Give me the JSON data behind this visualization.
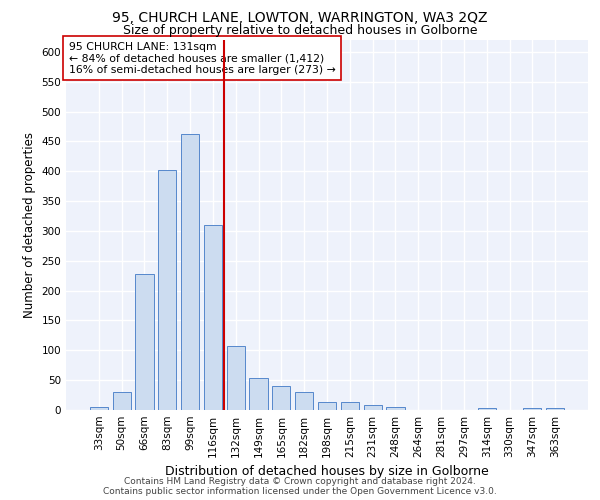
{
  "title1": "95, CHURCH LANE, LOWTON, WARRINGTON, WA3 2QZ",
  "title2": "Size of property relative to detached houses in Golborne",
  "xlabel": "Distribution of detached houses by size in Golborne",
  "ylabel": "Number of detached properties",
  "bar_labels": [
    "33sqm",
    "50sqm",
    "66sqm",
    "83sqm",
    "99sqm",
    "116sqm",
    "132sqm",
    "149sqm",
    "165sqm",
    "182sqm",
    "198sqm",
    "215sqm",
    "231sqm",
    "248sqm",
    "264sqm",
    "281sqm",
    "297sqm",
    "314sqm",
    "330sqm",
    "347sqm",
    "363sqm"
  ],
  "bar_values": [
    5,
    30,
    228,
    403,
    462,
    310,
    108,
    53,
    40,
    30,
    14,
    14,
    8,
    5,
    0,
    0,
    0,
    4,
    0,
    4,
    4
  ],
  "bar_color": "#ccdcf0",
  "bar_edge_color": "#5588cc",
  "vline_color": "#cc0000",
  "annotation_text": "95 CHURCH LANE: 131sqm\n← 84% of detached houses are smaller (1,412)\n16% of semi-detached houses are larger (273) →",
  "annotation_box_color": "white",
  "annotation_box_edge": "#cc0000",
  "ylim": [
    0,
    620
  ],
  "yticks": [
    0,
    50,
    100,
    150,
    200,
    250,
    300,
    350,
    400,
    450,
    500,
    550,
    600
  ],
  "footer1": "Contains HM Land Registry data © Crown copyright and database right 2024.",
  "footer2": "Contains public sector information licensed under the Open Government Licence v3.0.",
  "bg_color": "#eef2fb",
  "grid_color": "#ffffff",
  "title1_fontsize": 10,
  "title2_fontsize": 9,
  "xlabel_fontsize": 9,
  "ylabel_fontsize": 8.5,
  "tick_fontsize": 7.5,
  "footer_fontsize": 6.5
}
